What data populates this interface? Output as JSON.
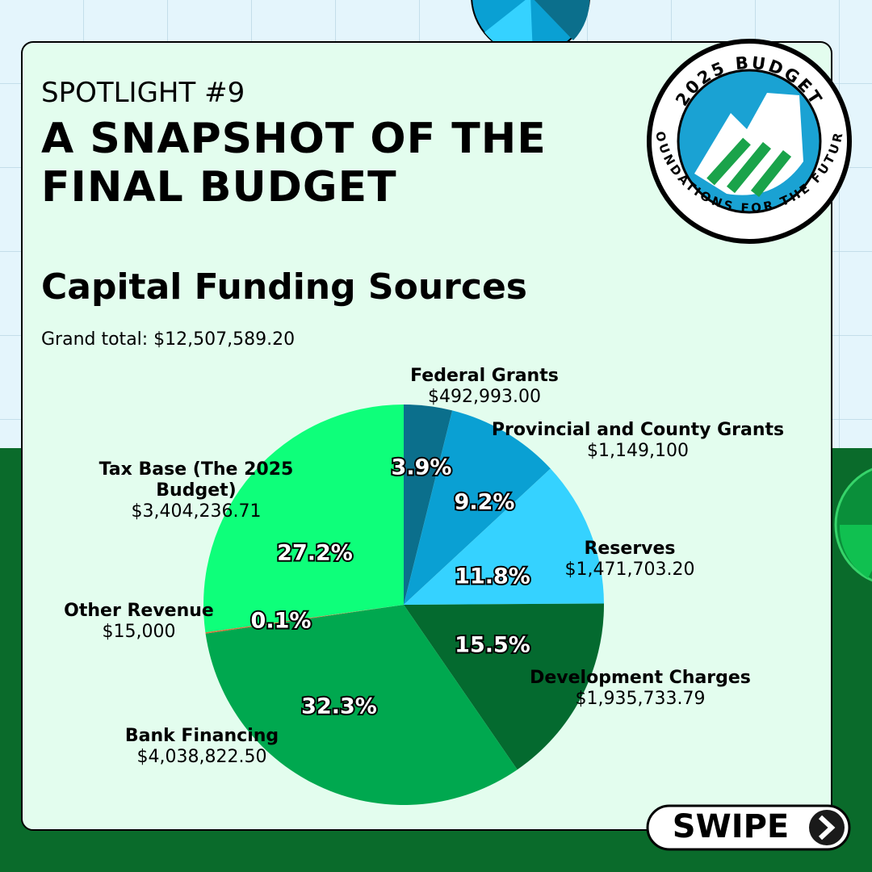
{
  "header": {
    "kicker": "SPOTLIGHT #9",
    "title": "A SNAPSHOT OF THE FINAL BUDGET"
  },
  "badge": {
    "top": "2025 BUDGET",
    "bottom": "FOUNDATIONS FOR THE FUTURE"
  },
  "chart_data": {
    "type": "pie",
    "title": "Capital Funding Sources",
    "subtitle": "Grand total: $12,507,589.20",
    "categories": [
      "Federal Grants",
      "Provincial and County Grants",
      "Reserves",
      "Development Charges",
      "Bank Financing",
      "Other Revenue",
      "Tax Base (The 2025 Budget)"
    ],
    "values": [
      3.9,
      9.2,
      11.8,
      15.5,
      32.3,
      0.1,
      27.2
    ],
    "value_labels": [
      "3.9%",
      "9.2%",
      "11.8%",
      "15.5%",
      "32.3%",
      "0.1%",
      "27.2%"
    ],
    "amount_labels": [
      "$492,993.00",
      "$1,149,100",
      "$1,471,703.20",
      "$1,935,733.79",
      "$4,038,822.50",
      "$15,000",
      "$3,404,236.71"
    ],
    "colors": [
      "#0b6f8c",
      "#0aa0d3",
      "#35d2ff",
      "#046a2f",
      "#00a84f",
      "#d9703a",
      "#0eff7a"
    ]
  },
  "swipe": "SWIPE"
}
